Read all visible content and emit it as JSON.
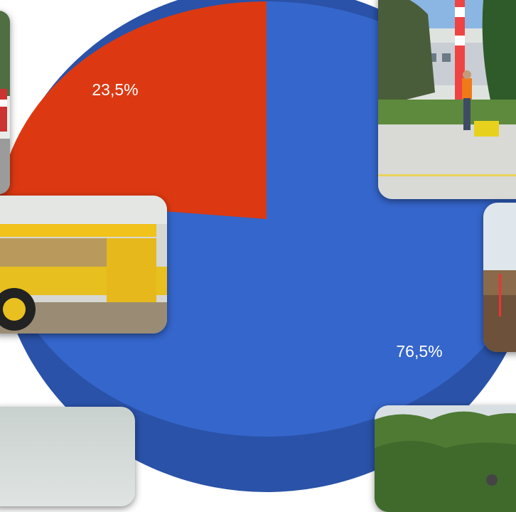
{
  "chart_data": {
    "type": "pie",
    "style": "3d",
    "slices": [
      {
        "label": "76,5%",
        "value": 76.5,
        "color": "#3566cc",
        "side_color": "#2a52a8"
      },
      {
        "label": "23,5%",
        "value": 23.5,
        "color": "#dc3912",
        "side_color": "#b02d0e"
      }
    ],
    "label_color": "#ffffff",
    "legend": "none"
  },
  "photos": [
    {
      "name": "photo-left-edge-road"
    },
    {
      "name": "photo-surveyor-airport"
    },
    {
      "name": "photo-yellow-machine"
    },
    {
      "name": "photo-soil-field"
    },
    {
      "name": "photo-sky"
    },
    {
      "name": "photo-green-trees"
    }
  ]
}
